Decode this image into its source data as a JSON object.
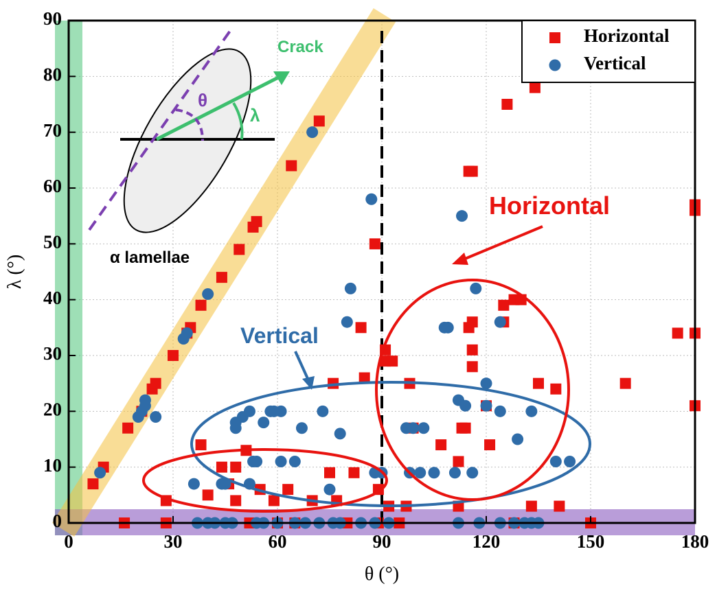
{
  "chart_data": {
    "type": "scatter",
    "x_label": "θ (°)",
    "y_label": "λ (°)",
    "xlim": [
      0,
      180
    ],
    "ylim": [
      0,
      90
    ],
    "xticks": [
      0,
      30,
      60,
      90,
      120,
      150,
      180
    ],
    "yticks": [
      0,
      10,
      20,
      30,
      40,
      50,
      60,
      70,
      80,
      90
    ],
    "grid": true,
    "legend": "upper right",
    "annotations": [
      "Crack",
      "θ",
      "λ",
      "α lamellae",
      "Horizontal",
      "Vertical"
    ],
    "series": [
      {
        "name": "Horizontal",
        "color": "#e8130f",
        "marker": "square",
        "x": [
          7,
          10,
          17,
          21,
          24,
          25,
          30,
          34,
          35,
          38,
          44,
          49,
          53,
          54,
          64,
          72,
          16,
          28,
          28,
          38,
          40,
          44,
          46,
          48,
          48,
          51,
          52,
          55,
          59,
          63,
          65,
          70,
          75,
          76,
          77,
          80,
          82,
          84,
          85,
          88,
          89,
          89,
          91,
          91,
          93,
          92,
          97,
          98,
          99,
          107,
          112,
          112,
          113,
          114,
          115,
          115,
          116,
          116,
          116,
          116,
          120,
          121,
          125,
          125,
          126,
          128,
          130,
          133,
          134,
          135,
          140,
          141,
          160,
          175,
          180,
          180,
          180,
          180,
          60,
          95,
          128,
          150
        ],
        "values": [
          7,
          10,
          17,
          20,
          24,
          25,
          30,
          34,
          35,
          39,
          44,
          49,
          53,
          54,
          64,
          72,
          0,
          4,
          0,
          14,
          5,
          10,
          7,
          4,
          10,
          13,
          0,
          6,
          4,
          6,
          0,
          4,
          9,
          25,
          4,
          0,
          9,
          35,
          26,
          50,
          6,
          0,
          31,
          29,
          29,
          3,
          3,
          25,
          17,
          14,
          11,
          3,
          17,
          17,
          35,
          63,
          63,
          31,
          28,
          36,
          21,
          14,
          39,
          36,
          75,
          40,
          40,
          3,
          78,
          25,
          24,
          3,
          25,
          34,
          34,
          56,
          57,
          21,
          0,
          0,
          0,
          0
        ]
      },
      {
        "name": "Vertical",
        "color": "#2f6ca8",
        "marker": "circle",
        "x": [
          9,
          20,
          21,
          22,
          22,
          25,
          33,
          34,
          40,
          70,
          36,
          44,
          45,
          48,
          48,
          50,
          52,
          52,
          53,
          54,
          56,
          58,
          59,
          61,
          61,
          65,
          67,
          73,
          75,
          78,
          80,
          81,
          87,
          88,
          90,
          97,
          98,
          99,
          101,
          102,
          105,
          108,
          109,
          111,
          112,
          113,
          114,
          116,
          117,
          120,
          120,
          124,
          124,
          129,
          133,
          140,
          144,
          37,
          40,
          42,
          45,
          47,
          54,
          56,
          60,
          65,
          68,
          72,
          76,
          78,
          84,
          88,
          92,
          112,
          118,
          124,
          128,
          131,
          133,
          135
        ],
        "values": [
          9,
          19,
          20,
          21,
          22,
          19,
          33,
          34,
          41,
          70,
          7,
          7,
          7,
          17,
          18,
          19,
          20,
          7,
          11,
          11,
          18,
          20,
          20,
          20,
          11,
          11,
          17,
          20,
          6,
          16,
          36,
          42,
          58,
          9,
          9,
          17,
          9,
          17,
          9,
          17,
          9,
          35,
          35,
          9,
          22,
          55,
          21,
          9,
          42,
          25,
          21,
          20,
          36,
          15,
          20,
          11,
          11,
          0,
          0,
          0,
          0,
          0,
          0,
          0,
          0,
          0,
          0,
          0,
          0,
          0,
          0,
          0,
          0,
          0,
          0,
          0,
          0,
          0,
          0,
          0
        ]
      }
    ]
  }
}
